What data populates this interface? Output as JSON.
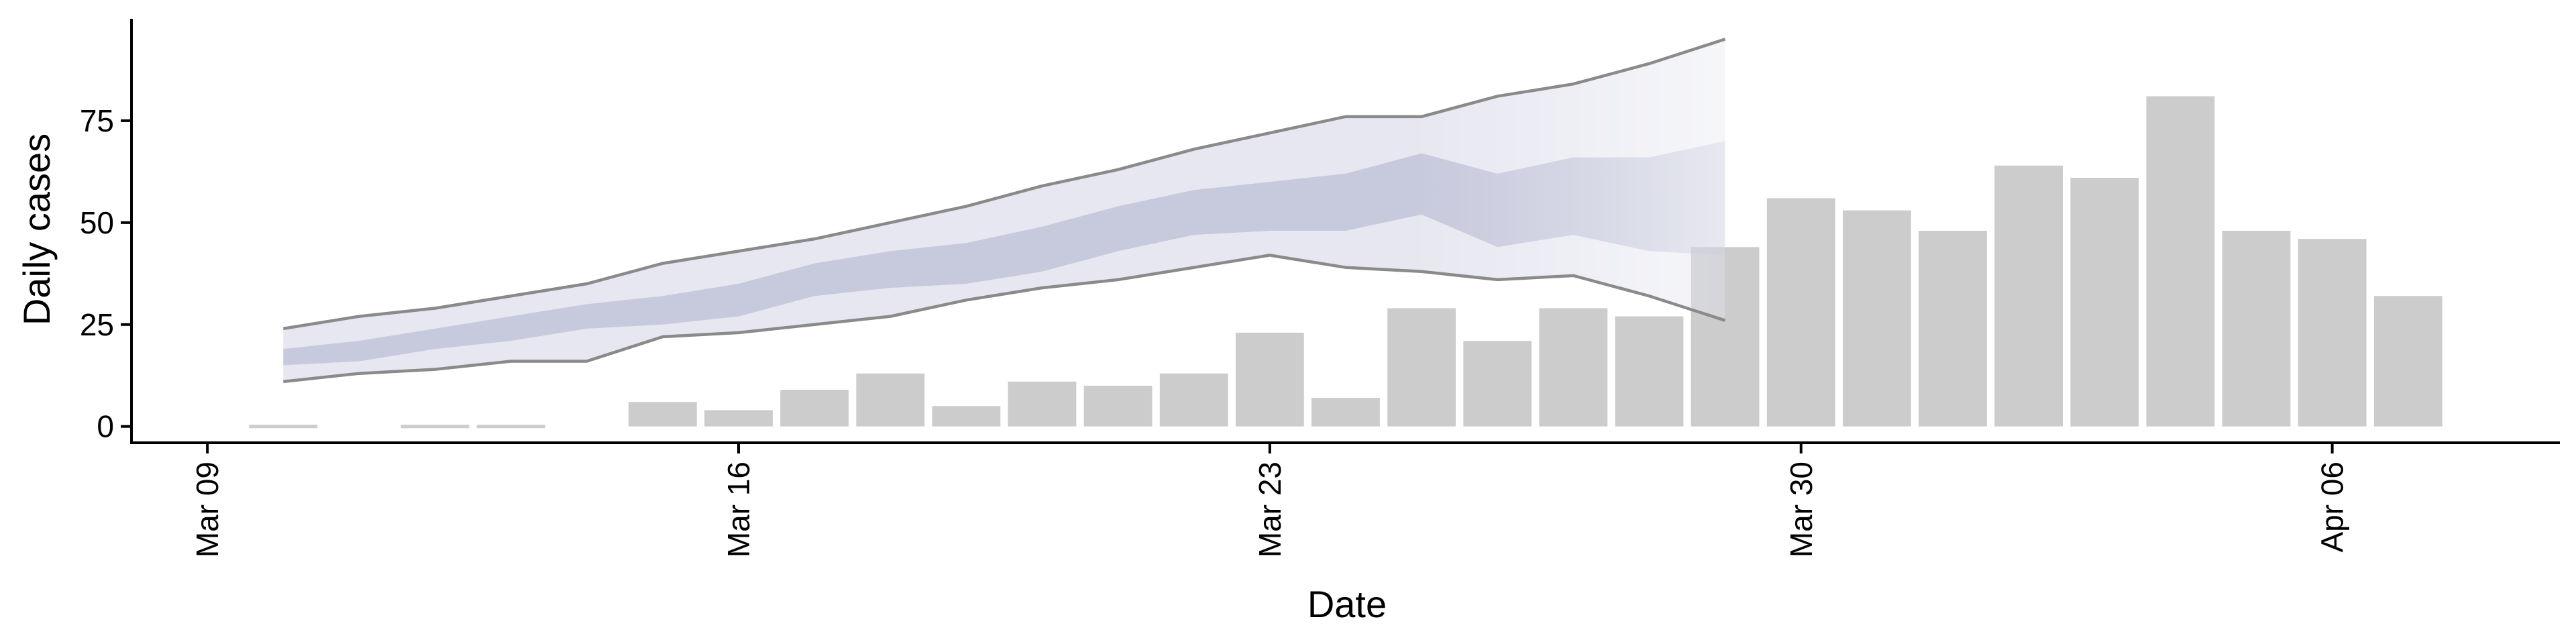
{
  "chart_data": {
    "type": "bar",
    "title": "",
    "xlabel": "Date",
    "ylabel": "Daily cases",
    "ylim": [
      -4,
      100
    ],
    "yticks": [
      0,
      25,
      50,
      75
    ],
    "xlim": [
      "2020-03-08",
      "2020-04-09"
    ],
    "xticks": [
      {
        "date": "2020-03-09",
        "label": "Mar 09"
      },
      {
        "date": "2020-03-16",
        "label": "Mar 16"
      },
      {
        "date": "2020-03-23",
        "label": "Mar 23"
      },
      {
        "date": "2020-03-30",
        "label": "Mar 30"
      },
      {
        "date": "2020-04-06",
        "label": "Apr 06"
      }
    ],
    "grid": false,
    "legend": "none",
    "colors": {
      "bars": "#cccccc",
      "band_outer": "#e6e7f0",
      "band_inner": "#c7c9dc",
      "band_edges": "#8a8a8a"
    },
    "bars": {
      "name": "",
      "dates": [
        "2020-03-10",
        "2020-03-11",
        "2020-03-12",
        "2020-03-13",
        "2020-03-14",
        "2020-03-15",
        "2020-03-16",
        "2020-03-17",
        "2020-03-18",
        "2020-03-19",
        "2020-03-20",
        "2020-03-21",
        "2020-03-22",
        "2020-03-23",
        "2020-03-24",
        "2020-03-25",
        "2020-03-26",
        "2020-03-27",
        "2020-03-28",
        "2020-03-29",
        "2020-03-30",
        "2020-03-31",
        "2020-04-01",
        "2020-04-02",
        "2020-04-03",
        "2020-04-04",
        "2020-04-05",
        "2020-04-06",
        "2020-04-07"
      ],
      "values": [
        0,
        null,
        0,
        0,
        null,
        6,
        4,
        9,
        13,
        5,
        11,
        10,
        13,
        23,
        7,
        29,
        21,
        29,
        27,
        44,
        56,
        53,
        48,
        64,
        61,
        81,
        48,
        46,
        32
      ]
    },
    "nowcast_band": {
      "dates": [
        "2020-03-10",
        "2020-03-11",
        "2020-03-12",
        "2020-03-13",
        "2020-03-14",
        "2020-03-15",
        "2020-03-16",
        "2020-03-17",
        "2020-03-18",
        "2020-03-19",
        "2020-03-20",
        "2020-03-21",
        "2020-03-22",
        "2020-03-23",
        "2020-03-24",
        "2020-03-25",
        "2020-03-26",
        "2020-03-27",
        "2020-03-28",
        "2020-03-29"
      ],
      "upper_90": [
        24,
        27,
        29,
        32,
        35,
        40,
        43,
        46,
        50,
        54,
        59,
        63,
        68,
        72,
        76,
        76,
        81,
        84,
        89,
        95
      ],
      "upper_50": [
        19,
        21,
        24,
        27,
        30,
        32,
        35,
        40,
        43,
        45,
        49,
        54,
        58,
        60,
        62,
        67,
        62,
        66,
        66,
        70
      ],
      "lower_50": [
        15,
        16,
        19,
        21,
        24,
        25,
        27,
        32,
        34,
        35,
        38,
        43,
        47,
        48,
        48,
        52,
        44,
        47,
        43,
        42
      ],
      "lower_90": [
        11,
        13,
        14,
        16,
        16,
        22,
        23,
        25,
        27,
        31,
        34,
        36,
        39,
        42,
        39,
        38,
        36,
        37,
        32,
        26
      ]
    }
  }
}
